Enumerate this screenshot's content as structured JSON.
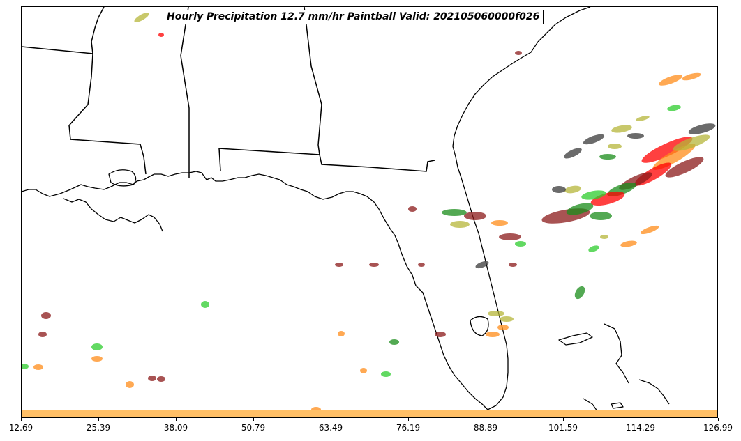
{
  "title": "Hourly Precipitation 12.7 mm/hr Paintball Valid: 202105060000f026",
  "colorbar": {
    "color": "#ffbf66",
    "ticks": [
      "12.69",
      "25.39",
      "38.09",
      "50.79",
      "63.49",
      "76.19",
      "88.89",
      "101.59",
      "114.29",
      "126.99"
    ]
  },
  "map": {
    "region": "southeastern United States and Florida",
    "coastline_color": "#000000",
    "paintball_colors": [
      "#ff0000",
      "#ff8c1a",
      "#8b1a1a",
      "#1a8c1a",
      "#2ecc2e",
      "#b5b53a",
      "#3a3a3a",
      "#6b6b00"
    ]
  }
}
